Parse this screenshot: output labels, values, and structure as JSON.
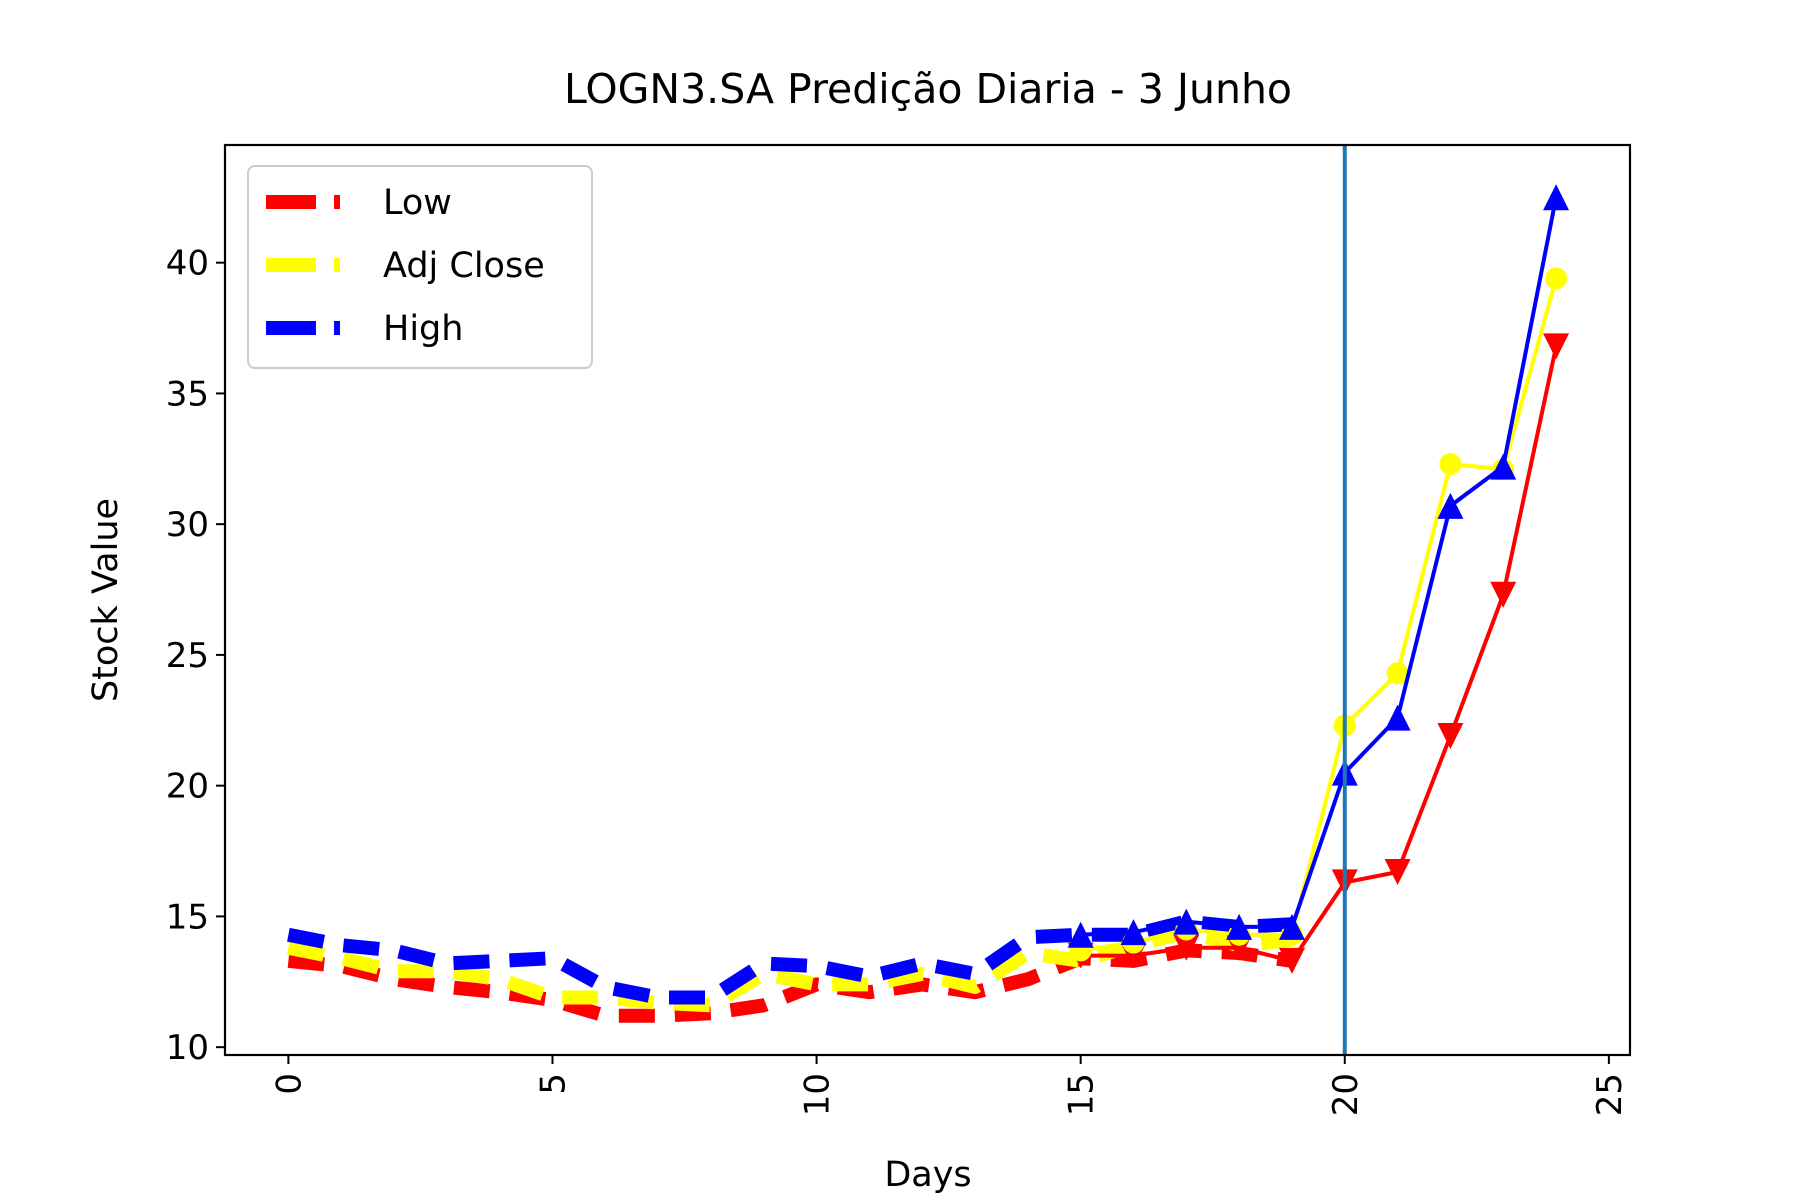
{
  "chart_data": {
    "type": "line",
    "title": "LOGN3.SA Predição Diaria - 3 Junho",
    "xlabel": "Days",
    "ylabel": "Stock Value",
    "xlim": [
      -1.2,
      25.4
    ],
    "ylim": [
      9.7,
      44.5
    ],
    "xticks": [
      0,
      5,
      10,
      15,
      20,
      25
    ],
    "yticks": [
      10,
      15,
      20,
      25,
      30,
      35,
      40
    ],
    "grid": false,
    "legend_position": "top-left",
    "vertical_line": {
      "x": 20,
      "color": "#1f77b4"
    },
    "series": [
      {
        "name": "Low",
        "color": "#ff0000",
        "historical": {
          "x": [
            0,
            1,
            2,
            3,
            4,
            5,
            6,
            7,
            8,
            9,
            10,
            11,
            12,
            13,
            14,
            15,
            16,
            17,
            18,
            19
          ],
          "y": [
            13.3,
            13.1,
            12.6,
            12.3,
            12.1,
            11.8,
            11.2,
            11.2,
            11.3,
            11.6,
            12.4,
            12.1,
            12.4,
            12.1,
            12.6,
            13.4,
            13.3,
            13.7,
            13.6,
            13.3
          ]
        },
        "forecast": {
          "x": [
            15,
            16,
            17,
            18,
            19,
            20,
            21,
            22,
            23,
            24
          ],
          "y": [
            13.5,
            13.5,
            13.8,
            13.8,
            13.3,
            16.3,
            16.7,
            21.9,
            27.3,
            36.8
          ]
        }
      },
      {
        "name": "Adj Close",
        "color": "#ffff00",
        "historical": {
          "x": [
            0,
            1,
            2,
            3,
            4,
            5,
            6,
            7,
            8,
            9,
            10,
            11,
            12,
            13,
            14,
            15,
            16,
            17,
            18,
            19
          ],
          "y": [
            13.8,
            13.4,
            12.9,
            12.9,
            12.6,
            11.9,
            11.9,
            11.7,
            11.6,
            12.8,
            12.4,
            12.4,
            12.8,
            12.3,
            13.6,
            13.3,
            13.9,
            14.4,
            13.9,
            14.1
          ]
        },
        "forecast": {
          "x": [
            15,
            16,
            17,
            18,
            19,
            20,
            21,
            22,
            23,
            24
          ],
          "y": [
            13.7,
            14.0,
            14.5,
            14.3,
            14.3,
            22.3,
            24.3,
            32.3,
            32.1,
            39.4
          ]
        }
      },
      {
        "name": "High",
        "color": "#0000ff",
        "historical": {
          "x": [
            0,
            1,
            2,
            3,
            4,
            5,
            6,
            7,
            8,
            9,
            10,
            11,
            12,
            13,
            14,
            15,
            16,
            17,
            18,
            19
          ],
          "y": [
            14.3,
            13.9,
            13.7,
            13.2,
            13.3,
            13.4,
            12.3,
            11.9,
            11.9,
            13.2,
            13.1,
            12.7,
            13.2,
            12.8,
            14.2,
            14.3,
            14.3,
            14.8,
            14.6,
            14.7
          ]
        },
        "forecast": {
          "x": [
            15,
            16,
            17,
            18,
            19,
            20,
            21,
            22,
            23,
            24
          ],
          "y": [
            14.3,
            14.4,
            14.8,
            14.6,
            14.6,
            20.5,
            22.6,
            30.7,
            32.2,
            42.5
          ]
        }
      }
    ]
  }
}
